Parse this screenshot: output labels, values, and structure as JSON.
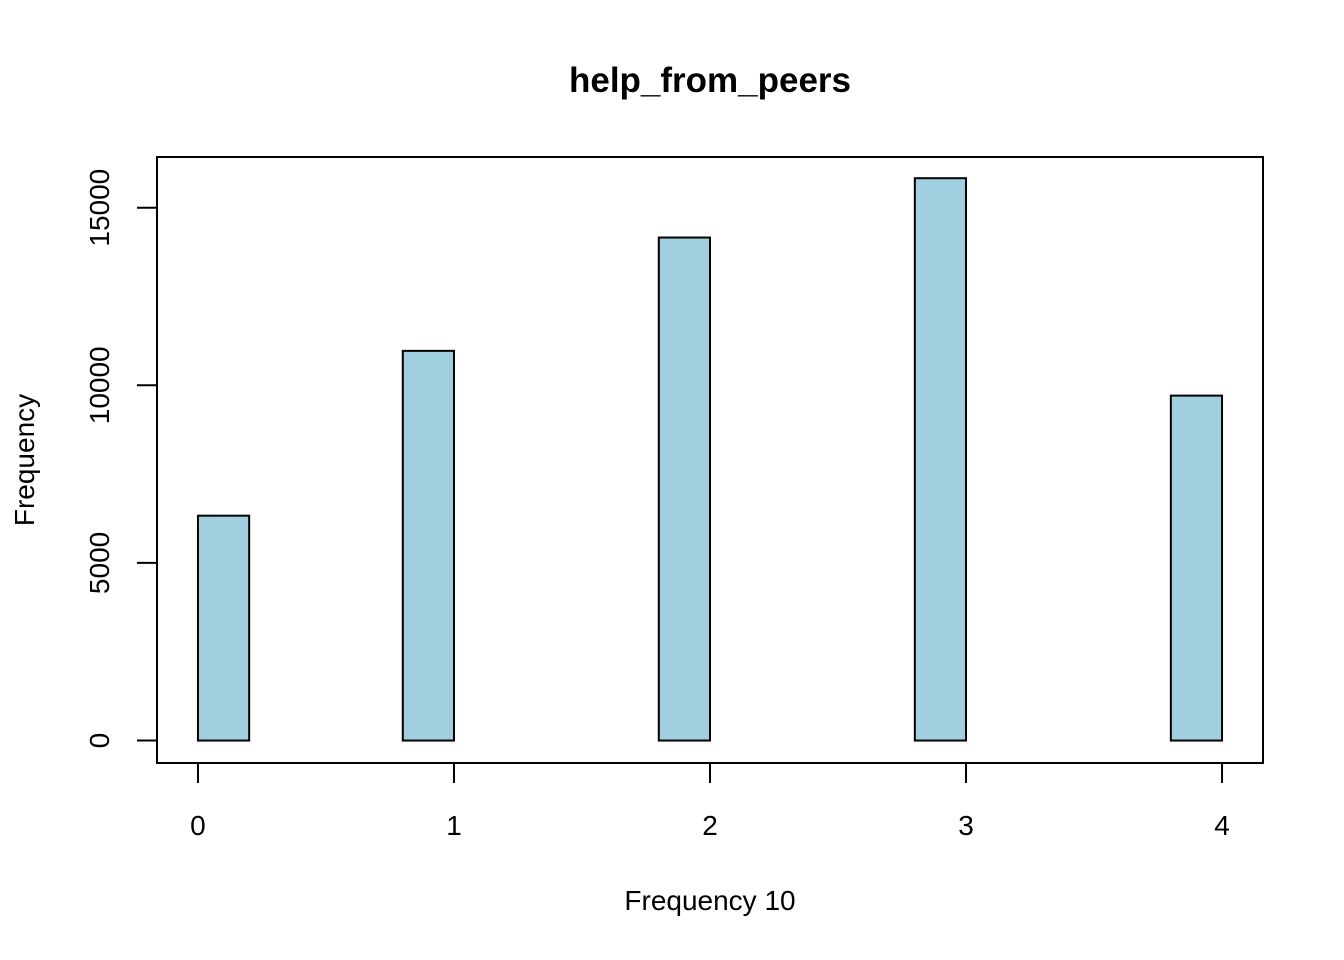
{
  "chart_data": {
    "type": "bar",
    "title": "help_from_peers",
    "xlabel": "Frequency 10",
    "ylabel": "Frequency",
    "bar_color": "#a0cfe0",
    "bin_width": 0.2,
    "bins": [
      {
        "start": 0.0,
        "value": 6330
      },
      {
        "start": 0.2,
        "value": 0
      },
      {
        "start": 0.4,
        "value": 0
      },
      {
        "start": 0.6,
        "value": 0
      },
      {
        "start": 0.8,
        "value": 10970
      },
      {
        "start": 1.0,
        "value": 0
      },
      {
        "start": 1.2,
        "value": 0
      },
      {
        "start": 1.4,
        "value": 0
      },
      {
        "start": 1.6,
        "value": 0
      },
      {
        "start": 1.8,
        "value": 14160
      },
      {
        "start": 2.0,
        "value": 0
      },
      {
        "start": 2.2,
        "value": 0
      },
      {
        "start": 2.4,
        "value": 0
      },
      {
        "start": 2.6,
        "value": 0
      },
      {
        "start": 2.8,
        "value": 15830
      },
      {
        "start": 3.0,
        "value": 0
      },
      {
        "start": 3.2,
        "value": 0
      },
      {
        "start": 3.4,
        "value": 0
      },
      {
        "start": 3.6,
        "value": 0
      },
      {
        "start": 3.8,
        "value": 9710
      }
    ],
    "xlim": [
      -0.16,
      4.16
    ],
    "ylim": [
      -632,
      16427
    ],
    "x_ticks": [
      "0",
      "1",
      "2",
      "3",
      "4"
    ],
    "y_ticks": [
      "0",
      "5000",
      "10000",
      "15000"
    ],
    "grid": false,
    "legend": "none"
  }
}
